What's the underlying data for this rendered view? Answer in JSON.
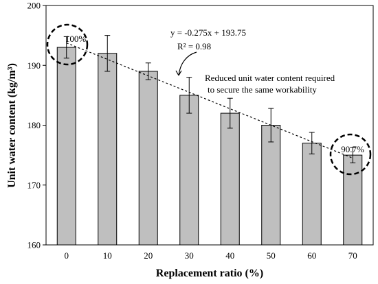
{
  "chart_data": {
    "type": "bar",
    "title": "",
    "xlabel": "Replacement ratio (%)",
    "ylabel": "Unit water content (kg/m³)",
    "ylim": [
      160,
      200
    ],
    "yticks": [
      160,
      170,
      180,
      190,
      200
    ],
    "categories": [
      "0",
      "10",
      "20",
      "30",
      "40",
      "50",
      "60",
      "70"
    ],
    "values": [
      193,
      192,
      189,
      185,
      182,
      180,
      177,
      175
    ],
    "error": [
      1.8,
      3.0,
      1.4,
      3.0,
      2.5,
      2.8,
      1.8,
      1.3
    ],
    "grid": false,
    "trendline": {
      "equation": "y = -0.275x + 193.75",
      "r2": "R² = 0.98",
      "slope": -0.275,
      "intercept": 193.75
    },
    "annotations": {
      "note_line1": "Reduced unit water content required",
      "note_line2": "to secure the same workability",
      "start_label": "100%",
      "end_label": "90.7%"
    }
  }
}
